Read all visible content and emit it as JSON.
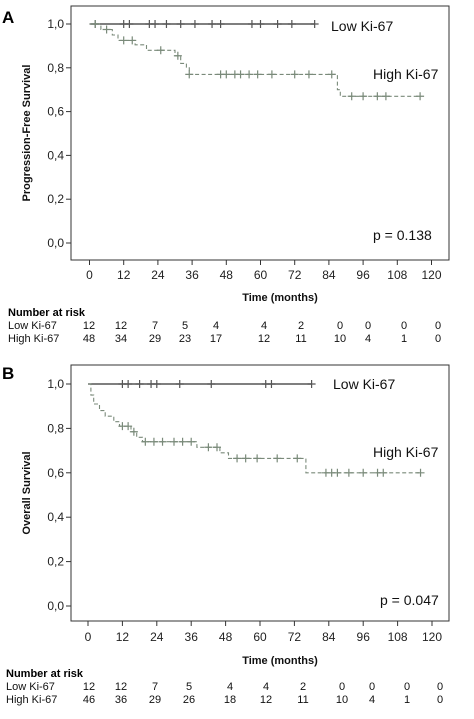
{
  "chart_data": [
    {
      "panel": "A",
      "type": "line",
      "ylabel": "Progression-Free Survival",
      "xlabel": "Time (months)",
      "xlim": [
        0,
        120
      ],
      "ylim": [
        0,
        1
      ],
      "xticks": [
        "0",
        "12",
        "24",
        "36",
        "48",
        "60",
        "72",
        "84",
        "96",
        "108",
        "120"
      ],
      "yticks": [
        "0,0",
        "0,2",
        "0,4",
        "0,6",
        "0,8",
        "1,0"
      ],
      "pvalue": "p = 0.138",
      "series": [
        {
          "name": "Low Ki-67",
          "color": "#555555",
          "steps": [
            [
              0,
              1.0
            ],
            [
              79,
              1.0
            ]
          ],
          "censor": [
            2,
            12,
            14,
            21,
            23,
            27,
            32,
            37,
            43,
            46,
            57,
            60,
            66,
            71,
            79
          ]
        },
        {
          "name": "High Ki-67",
          "color": "#7a8a7a",
          "steps": [
            [
              0,
              1.0
            ],
            [
              4,
              1.0
            ],
            [
              4,
              0.975
            ],
            [
              8,
              0.975
            ],
            [
              8,
              0.95
            ],
            [
              10,
              0.95
            ],
            [
              10,
              0.925
            ],
            [
              16,
              0.925
            ],
            [
              16,
              0.905
            ],
            [
              20,
              0.905
            ],
            [
              20,
              0.88
            ],
            [
              30,
              0.88
            ],
            [
              30,
              0.855
            ],
            [
              32,
              0.855
            ],
            [
              32,
              0.82
            ],
            [
              34,
              0.82
            ],
            [
              34,
              0.8
            ],
            [
              35,
              0.8
            ],
            [
              35,
              0.77
            ],
            [
              87,
              0.77
            ],
            [
              87,
              0.7
            ],
            [
              88,
              0.7
            ],
            [
              88,
              0.67
            ],
            [
              116,
              0.67
            ]
          ],
          "censor": [
            [
              2,
              1.0
            ],
            [
              6,
              0.975
            ],
            [
              12,
              0.925
            ],
            [
              15,
              0.925
            ],
            [
              25,
              0.88
            ],
            [
              31,
              0.855
            ],
            [
              35,
              0.77
            ],
            [
              46,
              0.77
            ],
            [
              48,
              0.77
            ],
            [
              51,
              0.77
            ],
            [
              53,
              0.77
            ],
            [
              56,
              0.77
            ],
            [
              59,
              0.77
            ],
            [
              64,
              0.77
            ],
            [
              72,
              0.77
            ],
            [
              77,
              0.77
            ],
            [
              85,
              0.77
            ],
            [
              92,
              0.67
            ],
            [
              96,
              0.67
            ],
            [
              101,
              0.67
            ],
            [
              104,
              0.67
            ],
            [
              116,
              0.67
            ]
          ]
        }
      ],
      "risk_table": {
        "title": "Number at risk",
        "rows": [
          {
            "label": "Low Ki-67",
            "values": [
              "12",
              "12",
              "7",
              "5",
              "4",
              "4",
              "2",
              "0",
              "0",
              "0",
              "0"
            ]
          },
          {
            "label": "High Ki-67",
            "values": [
              "48",
              "34",
              "29",
              "23",
              "17",
              "12",
              "11",
              "10",
              "4",
              "1",
              "0"
            ]
          }
        ]
      }
    },
    {
      "panel": "B",
      "type": "line",
      "ylabel": "Overall Survival",
      "xlabel": "Time (months)",
      "xlim": [
        0,
        120
      ],
      "ylim": [
        0,
        1
      ],
      "xticks": [
        "0",
        "12",
        "24",
        "36",
        "48",
        "60",
        "72",
        "84",
        "96",
        "108",
        "120"
      ],
      "yticks": [
        "0,0",
        "0,2",
        "0,4",
        "0,6",
        "0,8",
        "1,0"
      ],
      "pvalue": "p = 0.047",
      "series": [
        {
          "name": "Low Ki-67",
          "color": "#555555",
          "steps": [
            [
              0,
              1.0
            ],
            [
              78,
              1.0
            ]
          ],
          "censor": [
            12,
            14,
            18,
            22,
            24,
            32,
            43,
            62,
            64,
            78
          ]
        },
        {
          "name": "High Ki-67",
          "color": "#7a8a7a",
          "steps": [
            [
              0,
              1.0
            ],
            [
              1,
              1.0
            ],
            [
              1,
              0.95
            ],
            [
              2,
              0.95
            ],
            [
              2,
              0.91
            ],
            [
              4,
              0.91
            ],
            [
              4,
              0.88
            ],
            [
              6,
              0.88
            ],
            [
              6,
              0.855
            ],
            [
              9,
              0.855
            ],
            [
              9,
              0.83
            ],
            [
              11,
              0.83
            ],
            [
              11,
              0.81
            ],
            [
              15,
              0.81
            ],
            [
              15,
              0.785
            ],
            [
              17,
              0.785
            ],
            [
              17,
              0.76
            ],
            [
              19,
              0.76
            ],
            [
              19,
              0.74
            ],
            [
              38,
              0.74
            ],
            [
              38,
              0.715
            ],
            [
              46,
              0.715
            ],
            [
              46,
              0.69
            ],
            [
              49,
              0.69
            ],
            [
              49,
              0.665
            ],
            [
              76,
              0.665
            ],
            [
              76,
              0.6
            ],
            [
              116,
              0.6
            ]
          ],
          "censor": [
            [
              12,
              0.81
            ],
            [
              14,
              0.81
            ],
            [
              16,
              0.785
            ],
            [
              20,
              0.74
            ],
            [
              23,
              0.74
            ],
            [
              26,
              0.74
            ],
            [
              30,
              0.74
            ],
            [
              33,
              0.74
            ],
            [
              36,
              0.74
            ],
            [
              42,
              0.715
            ],
            [
              45,
              0.715
            ],
            [
              52,
              0.665
            ],
            [
              55,
              0.665
            ],
            [
              59,
              0.665
            ],
            [
              66,
              0.665
            ],
            [
              73,
              0.665
            ],
            [
              83,
              0.6
            ],
            [
              85,
              0.6
            ],
            [
              87,
              0.6
            ],
            [
              91,
              0.6
            ],
            [
              96,
              0.6
            ],
            [
              101,
              0.6
            ],
            [
              103,
              0.6
            ],
            [
              116,
              0.6
            ]
          ]
        }
      ],
      "risk_table": {
        "title": "Number at risk",
        "rows": [
          {
            "label": "Low Ki-67",
            "values": [
              "12",
              "12",
              "7",
              "5",
              "4",
              "4",
              "2",
              "0",
              "0",
              "0",
              "0"
            ]
          },
          {
            "label": "High Ki-67",
            "values": [
              "46",
              "36",
              "29",
              "26",
              "18",
              "12",
              "11",
              "10",
              "4",
              "1",
              "0"
            ]
          }
        ]
      }
    }
  ]
}
